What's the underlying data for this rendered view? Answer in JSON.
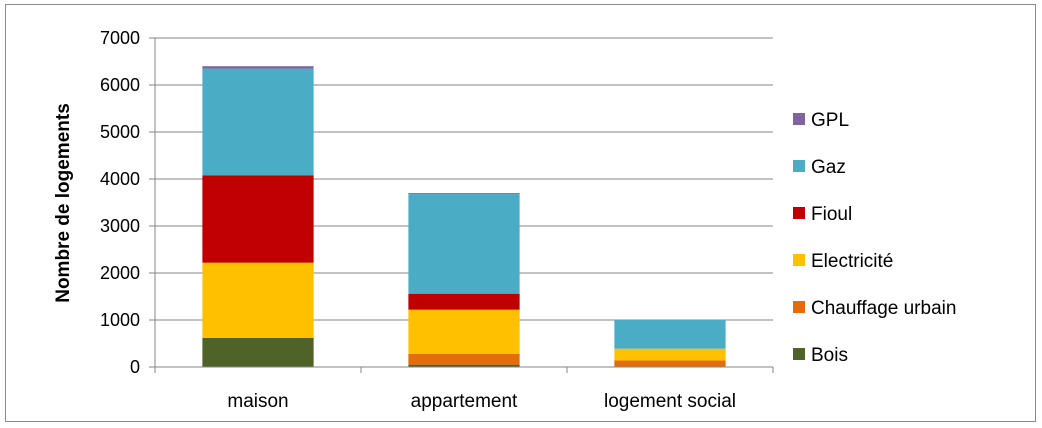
{
  "chart_data": {
    "type": "bar",
    "stacked": true,
    "categories": [
      "maison",
      "appartement",
      "logement social"
    ],
    "ylabel": "Nombre de logements",
    "xlabel": "",
    "ylim": [
      0,
      7000
    ],
    "yticks": [
      0,
      1000,
      2000,
      3000,
      4000,
      5000,
      6000,
      7000
    ],
    "grid": true,
    "legend_position": "right",
    "series": [
      {
        "name": "Bois",
        "color": "#4f6228",
        "values": [
          620,
          50,
          0
        ]
      },
      {
        "name": "Chauffage urbain",
        "color": "#e46c0a",
        "values": [
          0,
          230,
          140
        ]
      },
      {
        "name": "Electricité",
        "color": "#ffc000",
        "values": [
          1600,
          940,
          250
        ]
      },
      {
        "name": "Fioul",
        "color": "#c00000",
        "values": [
          1860,
          340,
          0
        ]
      },
      {
        "name": "Gaz",
        "color": "#4bacc6",
        "values": [
          2270,
          2120,
          610
        ]
      },
      {
        "name": "GPL",
        "color": "#8064a2",
        "values": [
          50,
          20,
          0
        ]
      }
    ]
  }
}
